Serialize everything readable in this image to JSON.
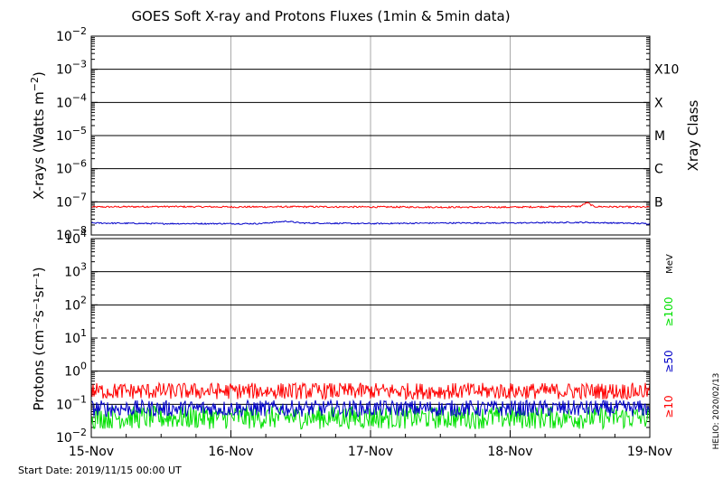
{
  "title": "GOES Soft X-ray and Protons Fluxes   (1min & 5min data)",
  "start_date": "Start Date: 2019/11/15 00:00 UT",
  "helio_stamp": "HELIO: 2020/02/13",
  "colors": {
    "xray_long": "#ff0000",
    "xray_short": "#0000c8",
    "p10": "#ff0000",
    "p50": "#0000c8",
    "p100": "#00e000",
    "grid": "#aaaaaa"
  },
  "chart_data": [
    {
      "type": "line",
      "panel": "xray",
      "ylabel_base": "X-rays (Watts m",
      "ylabel_exp": "−2",
      "ylabel_close": ")",
      "yscale": "log",
      "ylim": [
        1e-08,
        0.01
      ],
      "ytick_exponents": [
        "−2",
        "−3",
        "−4",
        "−5",
        "−6",
        "−7",
        "−8"
      ],
      "ytick_values": [
        0.01,
        0.001,
        0.0001,
        1e-05,
        1e-06,
        1e-07,
        1e-08
      ],
      "xlim_days": [
        0,
        4
      ],
      "class_axis_label": "Xray Class",
      "class_labels": [
        {
          "label": "X10",
          "value": 0.001
        },
        {
          "label": "X",
          "value": 0.0001
        },
        {
          "label": "M",
          "value": 1e-05
        },
        {
          "label": "C",
          "value": 1e-06
        },
        {
          "label": "B",
          "value": 1e-07
        }
      ],
      "series": [
        {
          "x": [
            0,
            0.5,
            1,
            1.5,
            2,
            2.5,
            3,
            3.5,
            3.55,
            3.6,
            4
          ],
          "y": [
            7e-08,
            7.2e-08,
            7e-08,
            7.1e-08,
            7e-08,
            6.9e-08,
            6.9e-08,
            7.3e-08,
            9.5e-08,
            7.2e-08,
            6.9e-08
          ],
          "noise": 0.05
        },
        {
          "x": [
            0,
            0.5,
            1,
            1.2,
            1.4,
            1.5,
            2,
            2.5,
            3,
            3.5,
            4
          ],
          "y": [
            2.3e-08,
            2.2e-08,
            2.2e-08,
            2.2e-08,
            2.6e-08,
            2.3e-08,
            2.2e-08,
            2.3e-08,
            2.3e-08,
            2.4e-08,
            2.2e-08
          ],
          "noise": 0.04
        }
      ]
    },
    {
      "type": "line",
      "panel": "protons",
      "ylabel": "Protons (cm⁻²s⁻¹sr⁻¹)",
      "yscale": "log",
      "ylim": [
        0.01,
        10000
      ],
      "ytick_mantissas": [
        "10",
        "10",
        "10",
        "10",
        "10",
        "10",
        "10"
      ],
      "ytick_exponents": [
        "4",
        "3",
        "2",
        "1",
        "0",
        "−1",
        "−2"
      ],
      "ytick_values": [
        10000.0,
        1000.0,
        100.0,
        10.0,
        1.0,
        0.1,
        0.01
      ],
      "dashed_threshold": 10,
      "xlim_days": [
        0,
        4
      ],
      "xtick_labels": [
        "15-Nov",
        "16-Nov",
        "17-Nov",
        "18-Nov",
        "19-Nov"
      ],
      "unit_label": "MeV",
      "series": [
        {
          "name": "≥100",
          "base": 0.04,
          "noise": 0.35
        },
        {
          "name": "≥50",
          "base": 0.075,
          "noise": 0.25
        },
        {
          "name": "≥10",
          "base": 0.25,
          "noise": 0.25
        }
      ]
    }
  ]
}
